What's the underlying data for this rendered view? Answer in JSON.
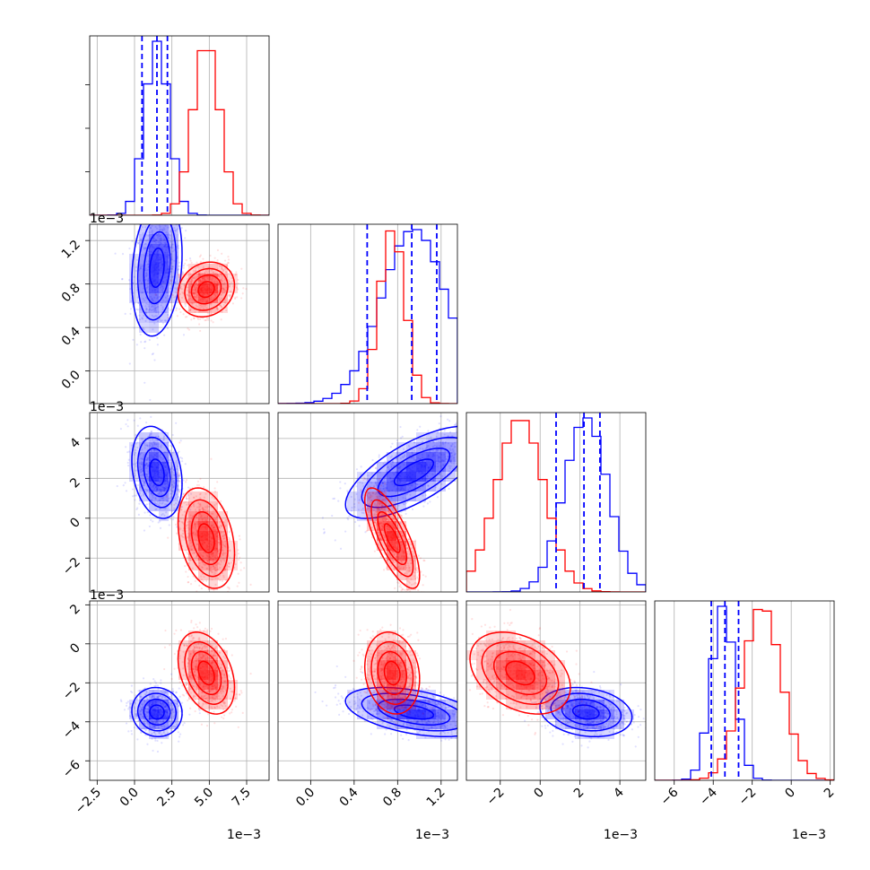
{
  "chart_data": {
    "type": "corner",
    "series": [
      {
        "name": "",
        "color": "#0000ff",
        "mean": [
          1.5,
          0.95,
          2.3,
          -3.5
        ],
        "sd": [
          0.8,
          0.3,
          1.1,
          0.6
        ],
        "corr": {
          "1-0": 0.2,
          "2-0": -0.25,
          "2-1": 0.7,
          "3-0": -0.05,
          "3-1": -0.45,
          "3-2": -0.2
        }
      },
      {
        "name": "",
        "color": "#ff0000",
        "mean": [
          4.8,
          0.75,
          -1.0,
          -1.5
        ],
        "sd": [
          0.9,
          0.12,
          1.2,
          1.0
        ],
        "corr": {
          "1-0": 0.15,
          "2-0": -0.3,
          "2-1": -0.75,
          "3-0": -0.35,
          "3-1": -0.15,
          "3-2": -0.35
        }
      }
    ],
    "params": [
      {
        "ticks": [
          -2.5,
          0.0,
          2.5,
          5.0,
          7.5
        ],
        "labels": [
          "−2.5",
          "0.0",
          "2.5",
          "5.0",
          "7.5"
        ],
        "range": [
          -3.0,
          9.0
        ],
        "offset": "1e−3"
      },
      {
        "ticks": [
          0.0,
          0.4,
          0.8,
          1.2
        ],
        "labels": [
          "0.0",
          "0.4",
          "0.8",
          "1.2"
        ],
        "range": [
          -0.3,
          1.35
        ],
        "offset": "1e−3"
      },
      {
        "ticks": [
          -2,
          0,
          2,
          4
        ],
        "labels": [
          "−2",
          "0",
          "2",
          "4"
        ],
        "range": [
          -3.7,
          5.3
        ],
        "offset": "1e−3"
      },
      {
        "ticks": [
          -6,
          -4,
          -2,
          0,
          2
        ],
        "labels": [
          "−6",
          "−4",
          "−2",
          "0",
          "2"
        ],
        "range": [
          -7.0,
          2.2
        ],
        "offset": "1e−3"
      }
    ],
    "quantile_lines": [
      [
        0.5,
        1.5,
        2.2
      ],
      [
        0.52,
        0.93,
        1.16
      ],
      [
        0.8,
        2.2,
        3.0
      ],
      [
        -4.1,
        -3.4,
        -2.7
      ]
    ],
    "grid": true,
    "hist_bins": 20
  }
}
